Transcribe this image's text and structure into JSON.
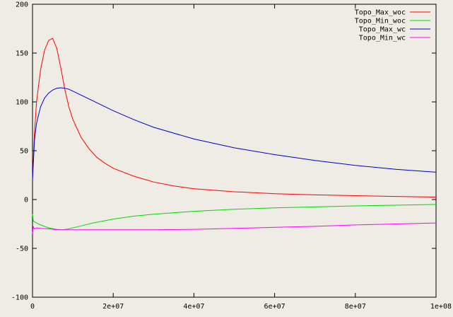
{
  "chart_data": {
    "type": "line",
    "title": "",
    "xlabel": "",
    "ylabel": "",
    "xlim": [
      0,
      100000000
    ],
    "ylim": [
      -100,
      200
    ],
    "grid": false,
    "legend_position": "top-right",
    "x_ticks": [
      0,
      20000000,
      40000000,
      60000000,
      80000000,
      100000000
    ],
    "x_tick_labels": [
      "0",
      "2e+07",
      "4e+07",
      "6e+07",
      "8e+07",
      "1e+08"
    ],
    "y_ticks": [
      -100,
      -50,
      0,
      50,
      100,
      150,
      200
    ],
    "y_tick_labels": [
      "-100",
      "-50",
      "0",
      "50",
      "100",
      "150",
      "200"
    ],
    "series": [
      {
        "name": "Topo_Max_woc",
        "color": "#ff0000",
        "x": [
          0,
          500000,
          1000000,
          2000000,
          3000000,
          4000000,
          5000000,
          6000000,
          7000000,
          8000000,
          9000000,
          10000000,
          12000000,
          14000000,
          16000000,
          18000000,
          20000000,
          25000000,
          30000000,
          35000000,
          40000000,
          50000000,
          60000000,
          70000000,
          80000000,
          90000000,
          100000000
        ],
        "y": [
          22,
          70,
          100,
          133,
          153,
          163,
          165,
          155,
          135,
          113,
          95,
          82,
          64,
          52,
          43,
          37,
          32,
          24,
          18,
          14,
          11,
          8,
          6,
          4.8,
          4,
          3.2,
          2.5
        ]
      },
      {
        "name": "Topo_Min_woc",
        "color": "#00dd00",
        "x": [
          0,
          200000,
          1000000,
          2000000,
          4000000,
          6000000,
          7500000,
          9000000,
          12000000,
          15000000,
          20000000,
          25000000,
          30000000,
          40000000,
          50000000,
          60000000,
          70000000,
          80000000,
          90000000,
          100000000
        ],
        "y": [
          -15,
          -22,
          -24,
          -26,
          -29,
          -30.5,
          -31,
          -30,
          -27,
          -24,
          -20,
          -17,
          -15,
          -12,
          -10,
          -8.5,
          -7.5,
          -6.5,
          -5.8,
          -5
        ]
      },
      {
        "name": "Topo_Max_wc",
        "color": "#0000cc",
        "x": [
          0,
          500000,
          1000000,
          2000000,
          3000000,
          4000000,
          5000000,
          6000000,
          7000000,
          8000000,
          9000000,
          10000000,
          12000000,
          15000000,
          20000000,
          25000000,
          30000000,
          40000000,
          50000000,
          60000000,
          70000000,
          80000000,
          90000000,
          100000000
        ],
        "y": [
          20,
          62,
          78,
          95,
          104,
          109,
          112,
          114,
          114.5,
          114,
          113,
          111,
          107,
          101,
          91,
          82,
          74,
          62,
          53,
          46,
          40,
          35,
          31,
          28
        ]
      },
      {
        "name": "Topo_Min_wc",
        "color": "#ff00ff",
        "x": [
          0,
          200000,
          500000,
          1000000,
          2000000,
          4000000,
          6000000,
          8000000,
          10000000,
          20000000,
          30000000,
          40000000,
          50000000,
          60000000,
          70000000,
          80000000,
          90000000,
          100000000
        ],
        "y": [
          -35,
          -28,
          -30,
          -29,
          -29.5,
          -30,
          -31,
          -31,
          -31,
          -31,
          -31,
          -30.5,
          -29.5,
          -28.5,
          -27.5,
          -26,
          -25,
          -24
        ]
      }
    ]
  }
}
